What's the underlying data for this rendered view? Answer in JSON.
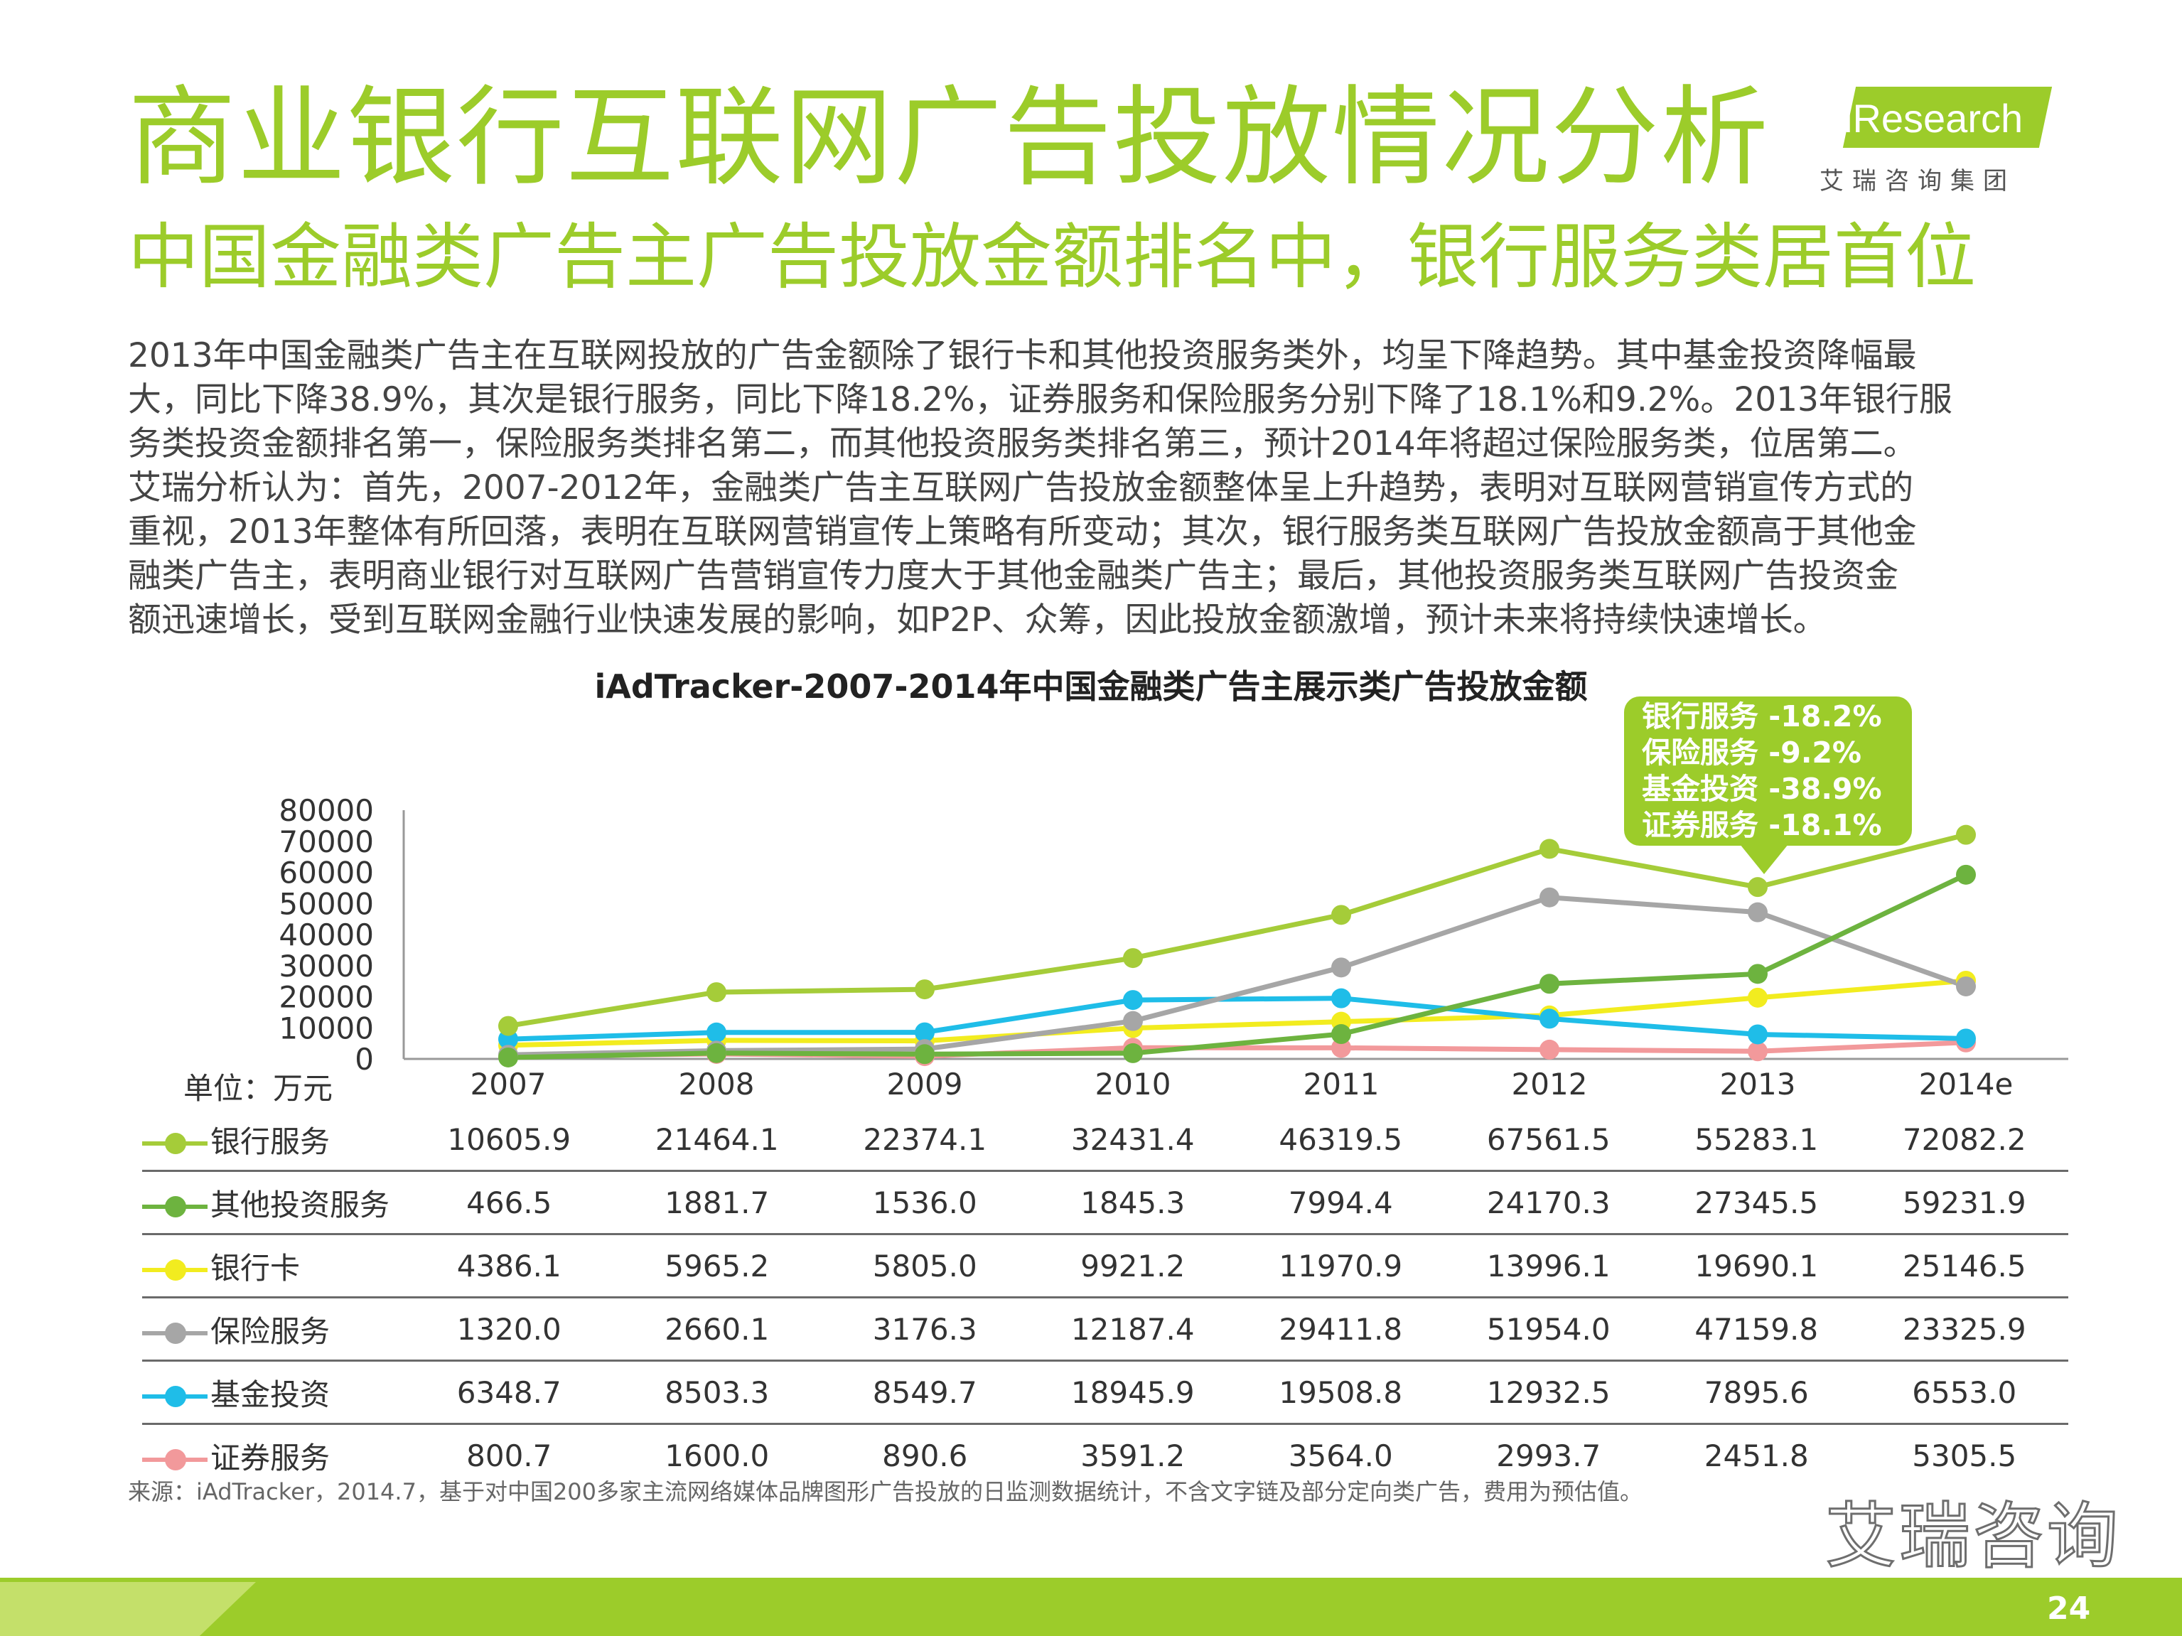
{
  "title": "商业银行互联网广告投放情况分析",
  "subtitle": "中国金融类广告主广告投放金额排名中，银行服务类居首位",
  "logo": {
    "brand": "iResearch",
    "sub": "艾瑞咨询集团"
  },
  "body_lines": [
    "2013年中国金融类广告主在互联网投放的广告金额除了银行卡和其他投资服务类外，均呈下降趋势。其中基金投资降幅最",
    "大，同比下降38.9%，其次是银行服务，同比下降18.2%，证券服务和保险服务分别下降了18.1%和9.2%。2013年银行服",
    "务类投资金额排名第一，保险服务类排名第二，而其他投资服务类排名第三，预计2014年将超过保险服务类，位居第二。",
    "艾瑞分析认为：首先，2007-2012年，金融类广告主互联网广告投放金额整体呈上升趋势，表明对互联网营销宣传方式的",
    "重视，2013年整体有所回落，表明在互联网营销宣传上策略有所变动；其次，银行服务类互联网广告投放金额高于其他金",
    "融类广告主，表明商业银行对互联网广告营销宣传力度大于其他金融类广告主；最后，其他投资服务类互联网广告投资金",
    "额迅速增长，受到互联网金融行业快速发展的影响，如P2P、众筹，因此投放金额激增，预计未来将持续快速增长。"
  ],
  "callout": [
    "银行服务  -18.2%",
    "保险服务   -9.2%",
    "基金投资  -38.9%",
    "证券服务  -18.1%"
  ],
  "source": "来源：iAdTracker，2014.7，基于对中国200多家主流网络媒体品牌图形广告投放的日监测数据统计，不含文字链及部分定向类广告，费用为预估值。",
  "watermark": "艾瑞咨询",
  "page_number": "24",
  "chart_data": {
    "type": "line",
    "title": "iAdTracker-2007-2014年中国金融类广告主展示类广告投放金额",
    "unit_label": "单位：万元",
    "categories": [
      "2007",
      "2008",
      "2009",
      "2010",
      "2011",
      "2012",
      "2013",
      "2014e"
    ],
    "ylim": [
      0,
      80000
    ],
    "yticks": [
      0,
      10000,
      20000,
      30000,
      40000,
      50000,
      60000,
      70000,
      80000
    ],
    "legend": "table-below",
    "series": [
      {
        "name": "银行服务",
        "color": "#a5cc39",
        "values": [
          10605.9,
          21464.1,
          22374.1,
          32431.4,
          46319.5,
          67561.5,
          55283.1,
          72082.2
        ],
        "labels": [
          "10605.9",
          "21464.1",
          "22374.1",
          "32431.4",
          "46319.5",
          "67561.5",
          "55283.1",
          "72082.2"
        ]
      },
      {
        "name": "其他投资服务",
        "color": "#6db33f",
        "values": [
          466.5,
          1881.7,
          1536.0,
          1845.3,
          7994.4,
          24170.3,
          27345.5,
          59231.9
        ],
        "labels": [
          "466.5",
          "1881.7",
          "1536.0",
          "1845.3",
          "7994.4",
          "24170.3",
          "27345.5",
          "59231.9"
        ]
      },
      {
        "name": "银行卡",
        "color": "#f2ec1f",
        "values": [
          4386.1,
          5965.2,
          5805.0,
          9921.2,
          11970.9,
          13996.1,
          19690.1,
          25146.5
        ],
        "labels": [
          "4386.1",
          "5965.2",
          "5805.0",
          "9921.2",
          "11970.9",
          "13996.1",
          "19690.1",
          "25146.5"
        ]
      },
      {
        "name": "保险服务",
        "color": "#a6a6a6",
        "values": [
          1320.0,
          2660.1,
          3176.3,
          12187.4,
          29411.8,
          51954.0,
          47159.8,
          23325.9
        ],
        "labels": [
          "1320.0",
          "2660.1",
          "3176.3",
          "12187.4",
          "29411.8",
          "51954.0",
          "47159.8",
          "23325.9"
        ]
      },
      {
        "name": "基金投资",
        "color": "#1fbde8",
        "values": [
          6348.7,
          8503.3,
          8549.7,
          18945.9,
          19508.8,
          12932.5,
          7895.6,
          6553.0
        ],
        "labels": [
          "6348.7",
          "8503.3",
          "8549.7",
          "18945.9",
          "19508.8",
          "12932.5",
          "7895.6",
          "6553.0"
        ]
      },
      {
        "name": "证券服务",
        "color": "#f2999b",
        "values": [
          800.7,
          1600.0,
          890.6,
          3591.2,
          3564.0,
          2993.7,
          2451.8,
          5305.5
        ],
        "labels": [
          "800.7",
          "1600.0",
          "890.6",
          "3591.2",
          "3564.0",
          "2993.7",
          "2451.8",
          "5305.5"
        ]
      }
    ]
  }
}
